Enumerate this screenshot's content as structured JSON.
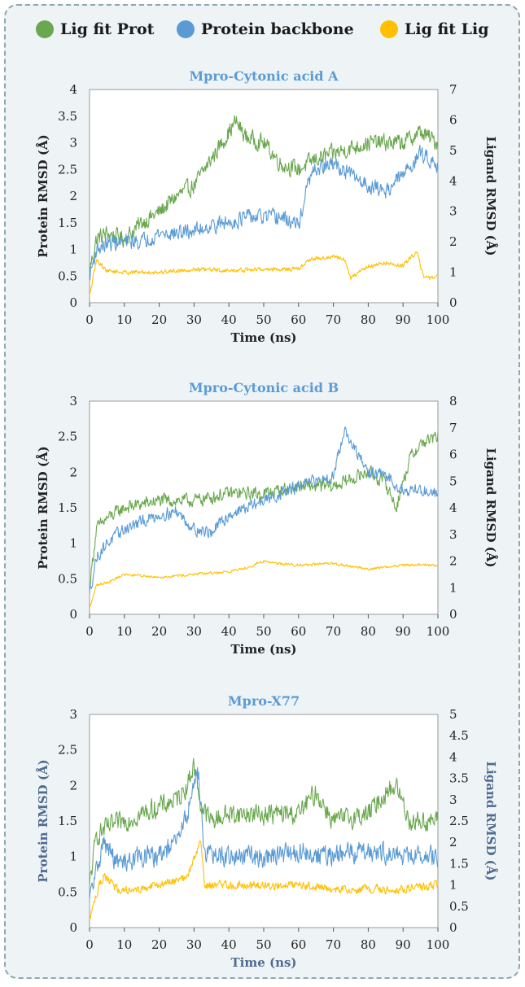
{
  "legend": [
    {
      "name": "Lig fit Prot",
      "color": "#6aa84f"
    },
    {
      "name": "Protein backbone",
      "color": "#5b9bd5"
    },
    {
      "name": "Lig fit Lig",
      "color": "#ffc000"
    }
  ],
  "chart_data": [
    {
      "type": "line",
      "title": "Mpro-Cytonic acid A",
      "xlabel": "Time (ns)",
      "ylabel": "Protein RMSD (Å)",
      "y2label": "Ligand RMSD (Å)",
      "xlim": [
        0,
        100
      ],
      "ylim": [
        0,
        4
      ],
      "y2lim": [
        0,
        7
      ],
      "xticks": [
        "0",
        "10",
        "20",
        "30",
        "40",
        "50",
        "60",
        "70",
        "80",
        "90",
        "100"
      ],
      "yticks": [
        "0",
        "0.5",
        "1",
        "1.5",
        "2",
        "2.5",
        "3",
        "3.5",
        "4"
      ],
      "y2ticks": [
        "0",
        "1",
        "2",
        "3",
        "4",
        "5",
        "6",
        "7"
      ],
      "series": [
        {
          "name": "Lig fit Prot",
          "axis": "left",
          "x": [
            0,
            2,
            5,
            10,
            15,
            20,
            25,
            30,
            35,
            40,
            42,
            45,
            50,
            55,
            60,
            65,
            70,
            75,
            80,
            85,
            90,
            95,
            100
          ],
          "y": [
            0.6,
            1.2,
            1.3,
            1.2,
            1.5,
            1.7,
            2.0,
            2.2,
            2.7,
            3.2,
            3.4,
            3.1,
            3.0,
            2.6,
            2.5,
            2.7,
            2.8,
            2.9,
            3.0,
            3.0,
            3.0,
            3.2,
            3.0
          ],
          "noise": 0.22
        },
        {
          "name": "Protein backbone",
          "axis": "left",
          "x": [
            0,
            2,
            5,
            10,
            15,
            20,
            25,
            30,
            35,
            40,
            45,
            50,
            55,
            60,
            63,
            65,
            70,
            75,
            80,
            85,
            90,
            95,
            100
          ],
          "y": [
            0.5,
            1.0,
            1.1,
            1.15,
            1.15,
            1.3,
            1.3,
            1.35,
            1.45,
            1.5,
            1.6,
            1.6,
            1.6,
            1.45,
            2.3,
            2.5,
            2.6,
            2.4,
            2.2,
            2.1,
            2.4,
            2.8,
            2.6
          ],
          "noise": 0.2
        },
        {
          "name": "Lig fit Lig",
          "axis": "right",
          "x": [
            0,
            2,
            5,
            10,
            20,
            30,
            40,
            50,
            60,
            63,
            65,
            70,
            73,
            75,
            80,
            85,
            90,
            94,
            96,
            100
          ],
          "y": [
            0.2,
            1.4,
            1.05,
            1.0,
            1.0,
            1.1,
            1.05,
            1.1,
            1.1,
            1.4,
            1.45,
            1.5,
            1.45,
            0.8,
            1.2,
            1.3,
            1.2,
            1.7,
            0.8,
            0.85
          ],
          "noise": 0.1
        }
      ]
    },
    {
      "type": "line",
      "title": "Mpro-Cytonic acid B",
      "xlabel": "Time (ns)",
      "ylabel": "Protein RMSD (Å)",
      "y2label": "Ligand RMSD (Å)",
      "xlim": [
        0,
        100
      ],
      "ylim": [
        0,
        3
      ],
      "y2lim": [
        0,
        8
      ],
      "xticks": [
        "0",
        "10",
        "20",
        "30",
        "40",
        "50",
        "60",
        "70",
        "80",
        "90",
        "100"
      ],
      "yticks": [
        "0",
        "0.5",
        "1",
        "1.5",
        "2",
        "2.5",
        "3"
      ],
      "y2ticks": [
        "0",
        "1",
        "2",
        "3",
        "4",
        "5",
        "6",
        "7",
        "8"
      ],
      "series": [
        {
          "name": "Lig fit Prot",
          "axis": "left",
          "x": [
            0,
            2,
            5,
            10,
            20,
            30,
            40,
            50,
            60,
            70,
            75,
            80,
            85,
            88,
            92,
            95,
            100
          ],
          "y": [
            0.4,
            1.2,
            1.35,
            1.5,
            1.6,
            1.6,
            1.7,
            1.7,
            1.8,
            1.8,
            1.9,
            2.0,
            1.85,
            1.5,
            2.2,
            2.4,
            2.5
          ],
          "noise": 0.13
        },
        {
          "name": "Protein backbone",
          "axis": "left",
          "x": [
            0,
            2,
            5,
            10,
            20,
            25,
            30,
            35,
            40,
            50,
            60,
            70,
            73,
            75,
            80,
            85,
            90,
            95,
            100
          ],
          "y": [
            0.3,
            0.8,
            1.0,
            1.2,
            1.4,
            1.45,
            1.2,
            1.15,
            1.4,
            1.6,
            1.8,
            1.95,
            2.6,
            2.4,
            2.0,
            1.95,
            1.75,
            1.75,
            1.7
          ],
          "noise": 0.12
        },
        {
          "name": "Lig fit Lig",
          "axis": "right",
          "x": [
            0,
            2,
            5,
            10,
            20,
            30,
            40,
            45,
            50,
            55,
            60,
            70,
            80,
            90,
            100
          ],
          "y": [
            0.2,
            1.1,
            1.2,
            1.5,
            1.4,
            1.5,
            1.6,
            1.75,
            2.0,
            1.9,
            1.85,
            1.9,
            1.7,
            1.85,
            1.85
          ],
          "noise": 0.07
        }
      ]
    },
    {
      "type": "line",
      "title": "Mpro-X77",
      "xlabel": "Time (ns)",
      "ylabel": "Protein RMSD (Å)",
      "y2label": "Ligand RMSD (Å)",
      "xlim": [
        0,
        100
      ],
      "ylim": [
        0,
        3
      ],
      "y2lim": [
        0,
        5
      ],
      "xticks": [
        "0",
        "10",
        "20",
        "30",
        "40",
        "50",
        "60",
        "70",
        "80",
        "90",
        "100"
      ],
      "yticks": [
        "0",
        "0.5",
        "1",
        "1.5",
        "2",
        "2.5",
        "3"
      ],
      "y2ticks": [
        "0",
        "0.5",
        "1",
        "1.5",
        "2",
        "2.5",
        "3",
        "3.5",
        "4",
        "4.5",
        "5"
      ],
      "series": [
        {
          "name": "Lig fit Prot",
          "axis": "left",
          "x": [
            0,
            2,
            5,
            10,
            20,
            25,
            28,
            30,
            32,
            35,
            40,
            50,
            60,
            65,
            70,
            80,
            85,
            88,
            92,
            95,
            100
          ],
          "y": [
            0.6,
            1.3,
            1.4,
            1.5,
            1.7,
            1.8,
            2.0,
            2.3,
            1.7,
            1.5,
            1.6,
            1.6,
            1.6,
            1.9,
            1.5,
            1.6,
            1.9,
            2.0,
            1.5,
            1.5,
            1.5
          ],
          "noise": 0.2
        },
        {
          "name": "Protein backbone",
          "axis": "left",
          "x": [
            0,
            2,
            4,
            8,
            15,
            20,
            25,
            28,
            30,
            31,
            33,
            35,
            40,
            50,
            60,
            70,
            80,
            90,
            95,
            100
          ],
          "y": [
            0.4,
            0.8,
            1.2,
            0.9,
            1.0,
            1.0,
            1.2,
            1.6,
            2.0,
            2.3,
            1.1,
            1.0,
            1.0,
            1.0,
            1.05,
            1.0,
            1.1,
            1.0,
            1.0,
            1.0
          ],
          "noise": 0.2
        },
        {
          "name": "Lig fit Lig",
          "axis": "right",
          "x": [
            0,
            2,
            4,
            8,
            15,
            20,
            25,
            28,
            30,
            32,
            33,
            40,
            50,
            60,
            70,
            80,
            90,
            100
          ],
          "y": [
            0.2,
            0.8,
            1.2,
            0.9,
            0.9,
            1.0,
            1.1,
            1.2,
            1.6,
            2.0,
            1.0,
            1.0,
            1.0,
            1.0,
            0.9,
            0.9,
            0.9,
            1.0
          ],
          "noise": 0.14
        }
      ]
    }
  ]
}
